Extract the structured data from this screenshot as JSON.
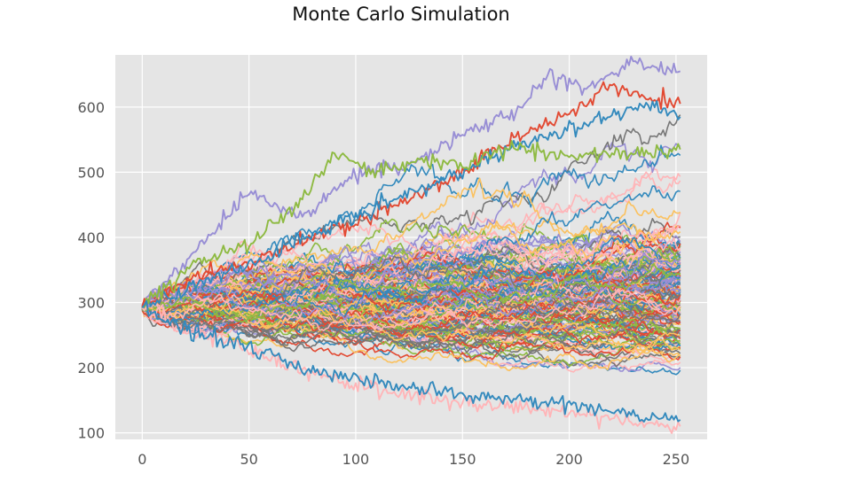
{
  "chart_data": {
    "type": "line",
    "title": "Monte Carlo Simulation",
    "xlabel": "",
    "ylabel": "",
    "xlim": [
      -12.6,
      264.6
    ],
    "ylim": [
      90,
      680
    ],
    "x_ticks": [
      0,
      50,
      100,
      150,
      200,
      250
    ],
    "y_ticks": [
      100,
      200,
      300,
      400,
      500,
      600
    ],
    "grid": true,
    "legend": "none",
    "background": "#E5E5E5",
    "palette": [
      "#E24A33",
      "#348ABD",
      "#988ED5",
      "#777777",
      "#FBC15E",
      "#8EBA42",
      "#FFB5B8"
    ],
    "simulation": {
      "n_paths": 175,
      "n_steps": 252,
      "start_value": 292,
      "final_values_min": 110,
      "final_values_max": 655
    },
    "highlighted_paths": [
      {
        "color": "#988ED5",
        "points": [
          [
            0,
            292
          ],
          [
            25,
            380
          ],
          [
            50,
            470
          ],
          [
            75,
            430
          ],
          [
            100,
            500
          ],
          [
            125,
            510
          ],
          [
            150,
            560
          ],
          [
            175,
            590
          ],
          [
            190,
            650
          ],
          [
            210,
            630
          ],
          [
            230,
            668
          ],
          [
            252,
            655
          ]
        ]
      },
      {
        "color": "#E24A33",
        "points": [
          [
            0,
            292
          ],
          [
            25,
            340
          ],
          [
            50,
            360
          ],
          [
            75,
            395
          ],
          [
            100,
            420
          ],
          [
            125,
            460
          ],
          [
            150,
            500
          ],
          [
            175,
            555
          ],
          [
            200,
            590
          ],
          [
            220,
            635
          ],
          [
            235,
            615
          ],
          [
            252,
            605
          ]
        ]
      },
      {
        "color": "#348ABD",
        "points": [
          [
            0,
            292
          ],
          [
            25,
            330
          ],
          [
            50,
            355
          ],
          [
            75,
            400
          ],
          [
            100,
            430
          ],
          [
            125,
            470
          ],
          [
            150,
            500
          ],
          [
            175,
            540
          ],
          [
            200,
            565
          ],
          [
            225,
            595
          ],
          [
            240,
            600
          ],
          [
            252,
            585
          ]
        ]
      },
      {
        "color": "#8EBA42",
        "points": [
          [
            0,
            292
          ],
          [
            25,
            360
          ],
          [
            50,
            390
          ],
          [
            75,
            460
          ],
          [
            90,
            530
          ],
          [
            110,
            500
          ],
          [
            130,
            520
          ],
          [
            150,
            510
          ],
          [
            175,
            540
          ],
          [
            200,
            525
          ],
          [
            252,
            535
          ]
        ]
      },
      {
        "color": "#FFB5B8",
        "points": [
          [
            0,
            292
          ],
          [
            25,
            255
          ],
          [
            50,
            228
          ],
          [
            75,
            195
          ],
          [
            100,
            175
          ],
          [
            125,
            160
          ],
          [
            150,
            145
          ],
          [
            175,
            140
          ],
          [
            200,
            130
          ],
          [
            225,
            118
          ],
          [
            252,
            110
          ]
        ]
      },
      {
        "color": "#348ABD",
        "points": [
          [
            0,
            292
          ],
          [
            25,
            250
          ],
          [
            50,
            230
          ],
          [
            75,
            200
          ],
          [
            100,
            180
          ],
          [
            125,
            170
          ],
          [
            150,
            160
          ],
          [
            175,
            150
          ],
          [
            200,
            145
          ],
          [
            225,
            130
          ],
          [
            252,
            120
          ]
        ]
      }
    ]
  }
}
